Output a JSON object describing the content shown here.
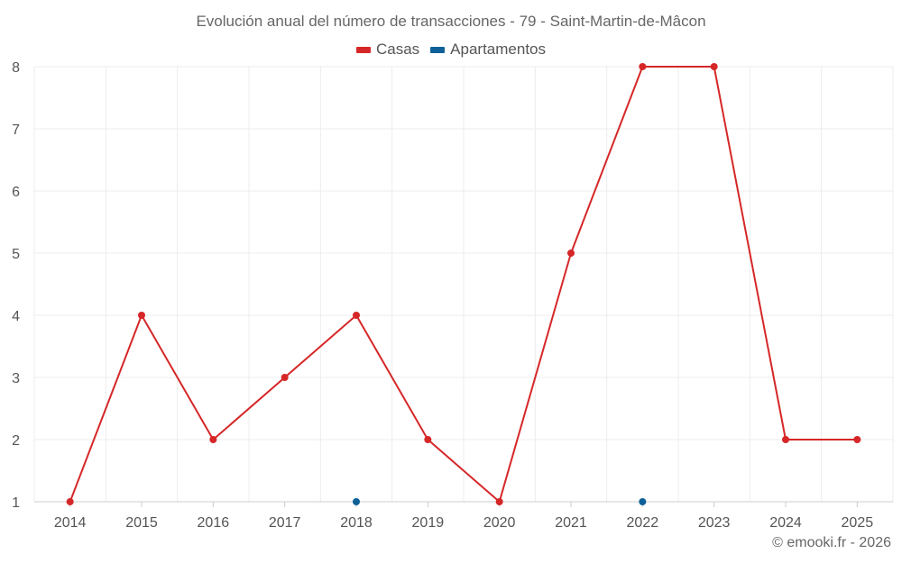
{
  "chart_data": {
    "type": "line",
    "title": "Evolución anual del número de transacciones - 79 - Saint-Martin-de-Mâcon",
    "categories": [
      "2014",
      "2015",
      "2016",
      "2017",
      "2018",
      "2019",
      "2020",
      "2021",
      "2022",
      "2023",
      "2024",
      "2025"
    ],
    "series": [
      {
        "name": "Casas",
        "color": "#d62728",
        "values": [
          1,
          4,
          2,
          3,
          4,
          2,
          1,
          5,
          8,
          8,
          2,
          2
        ]
      },
      {
        "name": "Apartamentos",
        "color": "#0e6198",
        "values": [
          null,
          null,
          null,
          null,
          1,
          null,
          null,
          null,
          1,
          null,
          null,
          null
        ]
      }
    ],
    "ylim": [
      1,
      8
    ],
    "yticks": [
      "1",
      "2",
      "3",
      "4",
      "5",
      "6",
      "7",
      "8"
    ],
    "xlabel": "",
    "ylabel": "",
    "grid": true,
    "legend_position": "top-center"
  },
  "credit": "© emooki.fr - 2026"
}
